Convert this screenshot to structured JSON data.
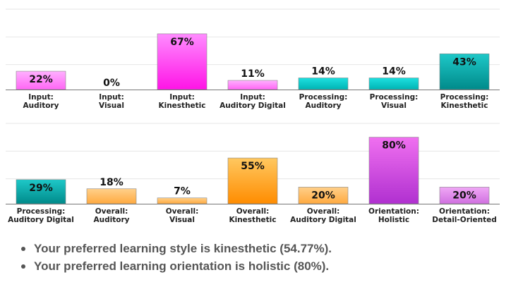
{
  "chart_data": [
    {
      "type": "bar",
      "categories": [
        [
          "Input:",
          "Auditory"
        ],
        [
          "Input:",
          "Visual"
        ],
        [
          "Input:",
          "Kinesthetic"
        ],
        [
          "Input:",
          "Auditory Digital"
        ],
        [
          "Processing:",
          "Auditory"
        ],
        [
          "Processing:",
          "Visual"
        ],
        [
          "Processing:",
          "Kinesthetic"
        ]
      ],
      "values": [
        22,
        0,
        67,
        11,
        14,
        14,
        43
      ],
      "value_labels": [
        "22%",
        "0%",
        "67%",
        "11%",
        "14%",
        "14%",
        "43%"
      ],
      "colors": [
        "magenta-light",
        "blue",
        "magenta",
        "magenta-light",
        "teal",
        "teal",
        "teal-dark"
      ],
      "ylim": [
        0,
        100
      ],
      "grid": true
    },
    {
      "type": "bar",
      "categories": [
        [
          "Processing:",
          "Auditory Digital"
        ],
        [
          "Overall:",
          "Auditory"
        ],
        [
          "Overall:",
          "Visual"
        ],
        [
          "Overall:",
          "Kinesthetic"
        ],
        [
          "Overall:",
          "Auditory Digital"
        ],
        [
          "Orientation:",
          "Holistic"
        ],
        [
          "Orientation:",
          "Detail-Oriented"
        ]
      ],
      "values": [
        29,
        18,
        7,
        55,
        20,
        80,
        20
      ],
      "value_labels": [
        "29%",
        "18%",
        "7%",
        "55%",
        "20%",
        "80%",
        "20%"
      ],
      "colors": [
        "teal-dark",
        "orange-light",
        "orange-light",
        "orange",
        "orange-light",
        "purple",
        "purple-light"
      ],
      "ylim": [
        0,
        100
      ],
      "grid": true
    }
  ],
  "palette": {
    "magenta-light": [
      "#ffb0ff",
      "#ff66f5"
    ],
    "magenta": [
      "#ff8cff",
      "#ff14e6"
    ],
    "blue": [
      "#7fa0ff",
      "#3050e0"
    ],
    "teal": [
      "#1ee0e0",
      "#00b3b3"
    ],
    "teal-dark": [
      "#1ec8c8",
      "#008a8a"
    ],
    "orange-light": [
      "#ffd08a",
      "#ffaa40"
    ],
    "orange": [
      "#ffc860",
      "#ff8c00"
    ],
    "purple": [
      "#f070f0",
      "#b030d0"
    ],
    "purple-light": [
      "#f0a8f6",
      "#d070e0"
    ],
    "bar_stroke": "#888888",
    "grid": "#e6e6e6",
    "baseline": "#777777"
  },
  "summary": {
    "line1": "Your preferred learning style is kinesthetic (54.77%).",
    "line2": "Your preferred learning orientation is holistic (80%)."
  }
}
